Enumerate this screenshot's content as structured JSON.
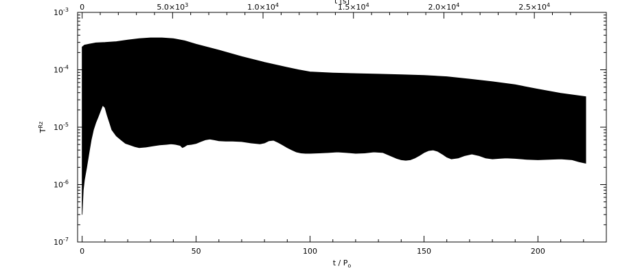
{
  "chart_data": {
    "type": "area",
    "title": "",
    "xlabel": "t / P",
    "xlabel_sub": "o",
    "ylabel": "T",
    "ylabel_sup": "Rz",
    "x2label": "t [s]",
    "xlim": [
      -2,
      230
    ],
    "ylim": [
      1e-07,
      0.001
    ],
    "yscale": "log",
    "x2_scale_s_per_unit": 126,
    "x_ticks": [
      0,
      50,
      100,
      150,
      200
    ],
    "x_ticklabels": [
      "0",
      "50",
      "100",
      "150",
      "200"
    ],
    "x2_ticks": [
      {
        "value": 0,
        "mant": "0",
        "exp": ""
      },
      {
        "value": 5000,
        "mant": "5.0×10",
        "exp": "3"
      },
      {
        "value": 10000,
        "mant": "1.0×10",
        "exp": "4"
      },
      {
        "value": 15000,
        "mant": "1.5×10",
        "exp": "4"
      },
      {
        "value": 20000,
        "mant": "2.0×10",
        "exp": "4"
      },
      {
        "value": 25000,
        "mant": "2.5×10",
        "exp": "4"
      }
    ],
    "y_ticks": [
      {
        "value": 1e-07,
        "mant": "10",
        "exp": "-7"
      },
      {
        "value": 1e-06,
        "mant": "10",
        "exp": "-6"
      },
      {
        "value": 1e-05,
        "mant": "10",
        "exp": "-5"
      },
      {
        "value": 0.0001,
        "mant": "10",
        "exp": "-4"
      },
      {
        "value": 0.001,
        "mant": "10",
        "exp": "-3"
      }
    ],
    "series": [
      {
        "fill_color": "#000000",
        "upper": {
          "x": [
            0,
            1,
            3,
            6,
            10,
            15,
            20,
            25,
            30,
            35,
            40,
            45,
            50,
            60,
            70,
            80,
            90,
            95,
            100,
            110,
            120,
            130,
            140,
            150,
            160,
            170,
            180,
            190,
            200,
            210,
            221
          ],
          "y": [
            0.00025,
            0.00027,
            0.00028,
            0.000295,
            0.0003,
            0.00031,
            0.00033,
            0.00035,
            0.00036,
            0.00036,
            0.00035,
            0.00032,
            0.00028,
            0.00022,
            0.00017,
            0.000135,
            0.00011,
            0.0001,
            9.2e-05,
            8.8e-05,
            8.6e-05,
            8.4e-05,
            8.2e-05,
            8e-05,
            7.6e-05,
            6.9e-05,
            6.2e-05,
            5.5e-05,
            4.6e-05,
            3.9e-05,
            3.4e-05
          ]
        },
        "lower": {
          "x": [
            0,
            0.5,
            1,
            2,
            3,
            4,
            5,
            6,
            7,
            8,
            9,
            10,
            11,
            12,
            13,
            15,
            17,
            19,
            21,
            23,
            25,
            28,
            31,
            34,
            37,
            39,
            41,
            43,
            44,
            45,
            46,
            48,
            50,
            52,
            54,
            56,
            58,
            60,
            63,
            66,
            70,
            74,
            78,
            80,
            82,
            84,
            86,
            88,
            90,
            92,
            94,
            96,
            98,
            100,
            104,
            108,
            112,
            116,
            120,
            124,
            128,
            132,
            135,
            138,
            140,
            142,
            144,
            146,
            148,
            150,
            152,
            154,
            156,
            158,
            160,
            162,
            165,
            168,
            171,
            174,
            177,
            180,
            183,
            186,
            190,
            195,
            200,
            205,
            210,
            215,
            218,
            221
          ],
          "y": [
            3e-07,
            8e-07,
            1.2e-06,
            2e-06,
            3.5e-06,
            6e-06,
            9e-06,
            1.2e-05,
            1.5e-05,
            1.9e-05,
            2.4e-05,
            2.2e-05,
            1.6e-05,
            1.2e-05,
            9e-06,
            7e-06,
            6e-06,
            5.2e-06,
            4.9e-06,
            4.6e-06,
            4.4e-06,
            4.5e-06,
            4.7e-06,
            4.9e-06,
            5e-06,
            5.1e-06,
            5e-06,
            4.8e-06,
            4.4e-06,
            4.6e-06,
            4.9e-06,
            5e-06,
            5.2e-06,
            5.6e-06,
            6e-06,
            6.2e-06,
            6e-06,
            5.8e-06,
            5.7e-06,
            5.7e-06,
            5.6e-06,
            5.3e-06,
            5.1e-06,
            5.3e-06,
            5.8e-06,
            5.9e-06,
            5.4e-06,
            4.9e-06,
            4.4e-06,
            4e-06,
            3.7e-06,
            3.55e-06,
            3.5e-06,
            3.5e-06,
            3.55e-06,
            3.6e-06,
            3.7e-06,
            3.6e-06,
            3.5e-06,
            3.55e-06,
            3.7e-06,
            3.6e-06,
            3.2e-06,
            2.85e-06,
            2.7e-06,
            2.65e-06,
            2.7e-06,
            2.9e-06,
            3.2e-06,
            3.6e-06,
            3.9e-06,
            4e-06,
            3.8e-06,
            3.4e-06,
            3e-06,
            2.8e-06,
            2.9e-06,
            3.2e-06,
            3.4e-06,
            3.2e-06,
            2.9e-06,
            2.8e-06,
            2.85e-06,
            2.9e-06,
            2.85e-06,
            2.75e-06,
            2.7e-06,
            2.75e-06,
            2.8e-06,
            2.7e-06,
            2.5e-06,
            2.35e-06
          ]
        }
      }
    ]
  }
}
